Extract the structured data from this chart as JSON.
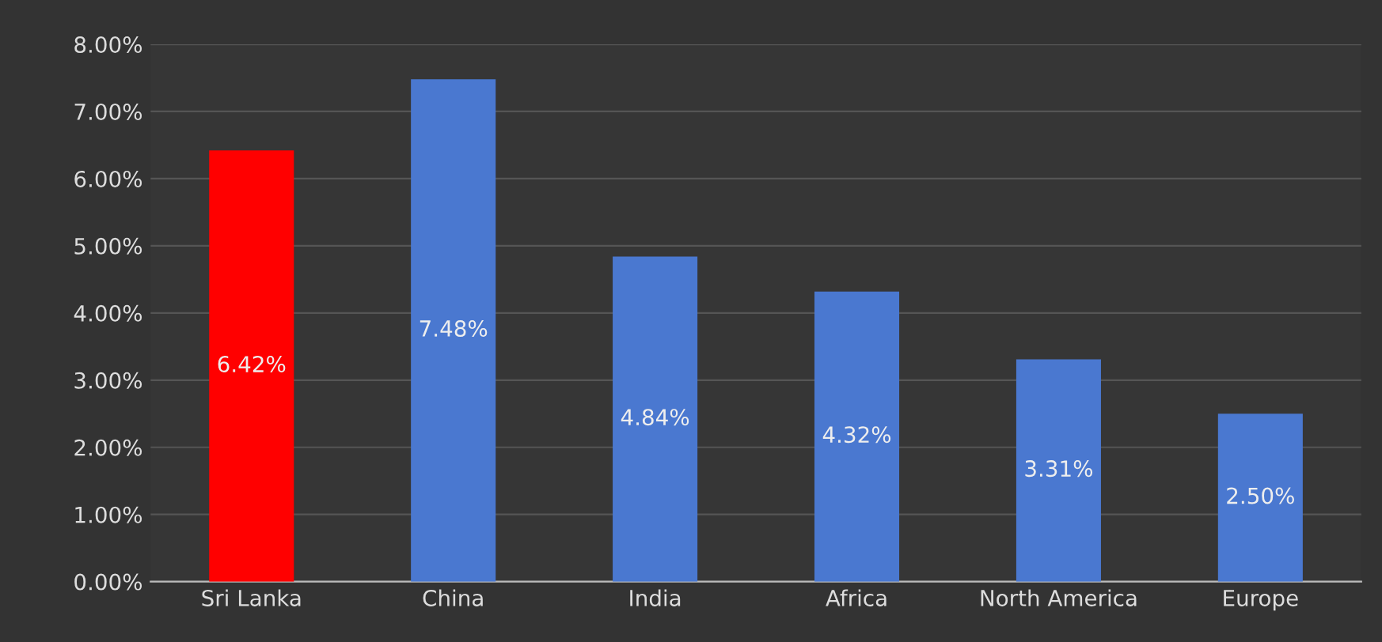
{
  "chart_data": {
    "type": "bar",
    "categories": [
      "Sri Lanka",
      "China",
      "India",
      "Africa",
      "North America",
      "Europe"
    ],
    "values": [
      6.42,
      7.48,
      4.84,
      4.32,
      3.31,
      2.5
    ],
    "colors": [
      "#ff0000",
      "#4a78d0",
      "#4a78d0",
      "#4a78d0",
      "#4a78d0",
      "#4a78d0"
    ],
    "value_labels": [
      "6.42%",
      "7.48%",
      "4.84%",
      "4.32%",
      "3.31%",
      "2.50%"
    ],
    "ylim": [
      0,
      8
    ],
    "yticks": [
      {
        "value": 0,
        "label": "0.00%"
      },
      {
        "value": 1,
        "label": "1.00%"
      },
      {
        "value": 2,
        "label": "2.00%"
      },
      {
        "value": 3,
        "label": "3.00%"
      },
      {
        "value": 4,
        "label": "4.00%"
      },
      {
        "value": 5,
        "label": "5.00%"
      },
      {
        "value": 6,
        "label": "6.00%"
      },
      {
        "value": 7,
        "label": "7.00%"
      },
      {
        "value": 8,
        "label": "8.00%"
      }
    ],
    "grid": "y"
  }
}
